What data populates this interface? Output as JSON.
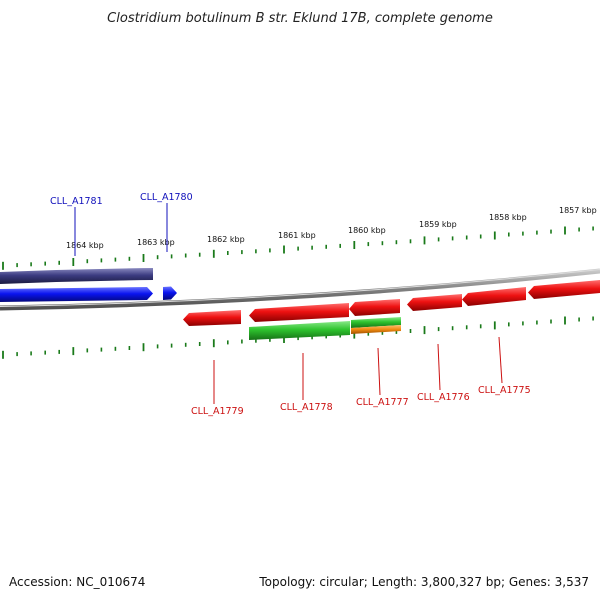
{
  "title": "Clostridium botulinum B str. Eklund 17B, complete genome",
  "accession": "Accession: NC_010674",
  "summary": "Topology: circular; Length: 3,800,327 bp; Genes: 3,537",
  "colors": {
    "forward_gene": "#0a14f0",
    "reverse_gene": "#ee1111",
    "rna_gene": "#2ec42e",
    "cds_overlay": "#f08a10",
    "forward_contig": "#3c3c82",
    "backbone": "#808080",
    "tick": "#1a7a1a",
    "forward_label": "#1010bb",
    "reverse_label": "#cc1111"
  },
  "scale_ticks": [
    {
      "label": "1864 kbp",
      "kbp": 1864
    },
    {
      "label": "1863 kbp",
      "kbp": 1863
    },
    {
      "label": "1862 kbp",
      "kbp": 1862
    },
    {
      "label": "1861 kbp",
      "kbp": 1861
    },
    {
      "label": "1860 kbp",
      "kbp": 1860
    },
    {
      "label": "1859 kbp",
      "kbp": 1859
    },
    {
      "label": "1858 kbp",
      "kbp": 1858
    },
    {
      "label": "1857 kbp",
      "kbp": 1857
    }
  ],
  "genes": [
    {
      "label": "CLL_A1781",
      "strand": "forward"
    },
    {
      "label": "CLL_A1780",
      "strand": "forward"
    },
    {
      "label": "CLL_A1779",
      "strand": "reverse"
    },
    {
      "label": "CLL_A1778",
      "strand": "reverse"
    },
    {
      "label": "CLL_A1777",
      "strand": "reverse"
    },
    {
      "label": "CLL_A1776",
      "strand": "reverse"
    },
    {
      "label": "CLL_A1775",
      "strand": "reverse"
    }
  ]
}
